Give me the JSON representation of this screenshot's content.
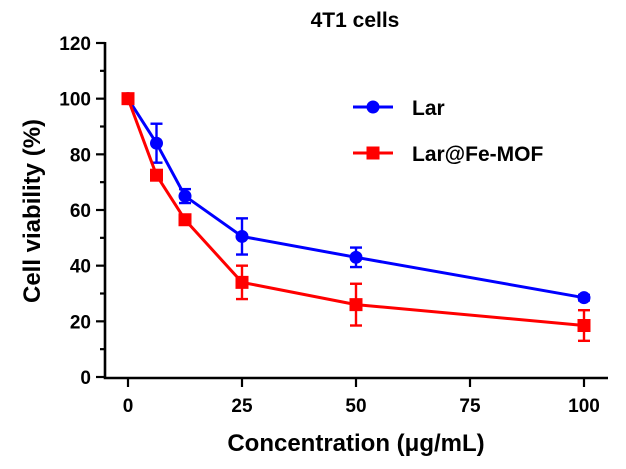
{
  "chart_data": {
    "type": "line",
    "title": "4T1 cells",
    "xlabel": "Concentration (μg/mL)",
    "ylabel": "Cell viability (%)",
    "xlim": [
      0,
      100
    ],
    "ylim": [
      0,
      120
    ],
    "x_ticks": [
      {
        "label": "0",
        "value": 0
      },
      {
        "label": "25",
        "value": 25
      },
      {
        "label": "50",
        "value": 50
      },
      {
        "label": "75",
        "value": 75
      },
      {
        "label": "100",
        "value": 100
      }
    ],
    "y_ticks": [
      {
        "label": "0",
        "value": 0
      },
      {
        "label": "20",
        "value": 20
      },
      {
        "label": "40",
        "value": 40
      },
      {
        "label": "60",
        "value": 60
      },
      {
        "label": "80",
        "value": 80
      },
      {
        "label": "100",
        "value": 100
      },
      {
        "label": "120",
        "value": 120
      }
    ],
    "legend_position": "top-right",
    "series": [
      {
        "name": "Lar",
        "color": "#0000ff",
        "marker": "circle",
        "x": [
          0,
          6.25,
          12.5,
          25,
          50,
          100
        ],
        "values": [
          100,
          84,
          65,
          50.5,
          43,
          28.5
        ],
        "errors": [
          1.0,
          7.0,
          2.5,
          6.5,
          3.5,
          1.0
        ]
      },
      {
        "name": "Lar@Fe-MOF",
        "color": "#ff0000",
        "marker": "square",
        "x": [
          0,
          6.25,
          12.5,
          25,
          50,
          100
        ],
        "values": [
          100,
          72.5,
          56.5,
          34,
          26,
          18.5
        ],
        "errors": [
          1.0,
          1.5,
          1.5,
          6.0,
          7.5,
          5.5
        ]
      }
    ]
  }
}
